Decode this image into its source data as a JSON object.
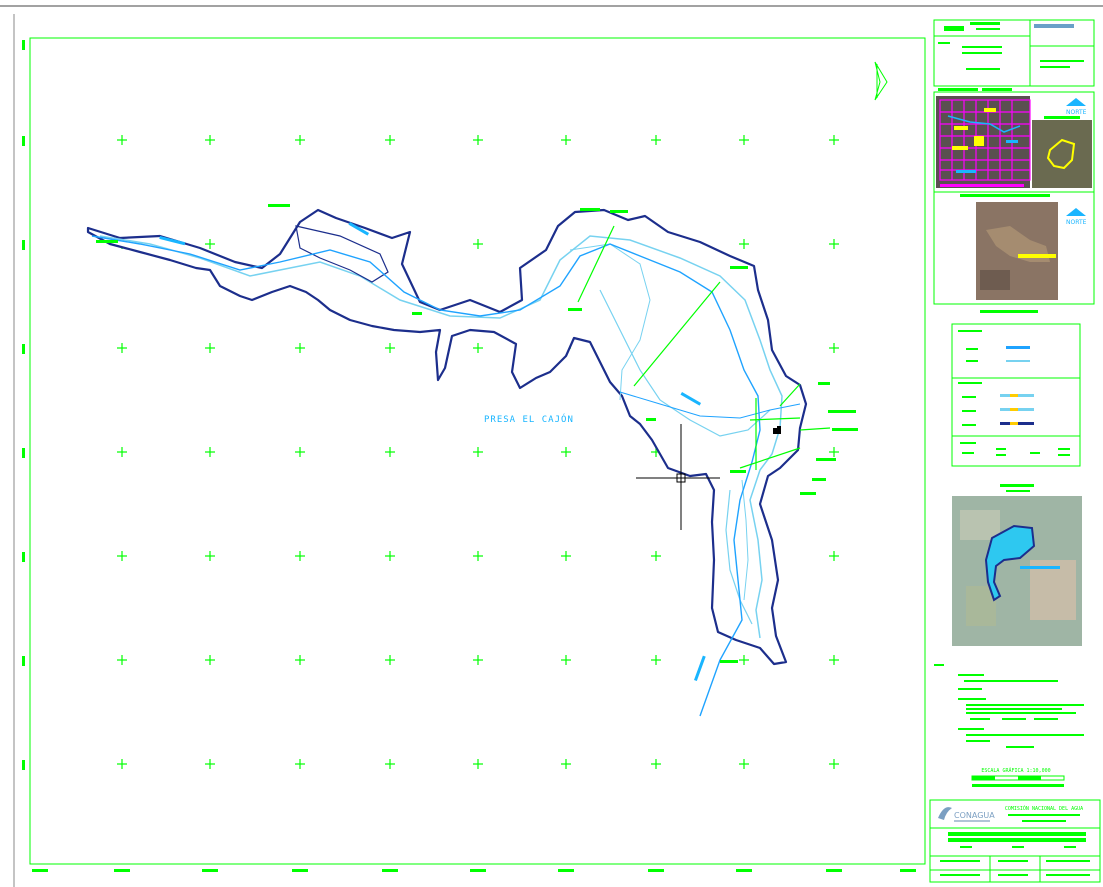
{
  "drawing": {
    "reservoir_label": "PRESA EL CAJÓN",
    "north_labels": [
      "NORTE",
      "NORTE"
    ],
    "scale_caption": "ESCALA GRÁFICA 1:10,000",
    "scale_right_label": "1:10,000",
    "logo_text": "CONAGUA",
    "org_title": "COMISIÓN NACIONAL DEL AGUA",
    "colors": {
      "frame": "#00ff00",
      "shore_dark": "#1c2e8c",
      "shore_light": "#77d2f0",
      "channel": "#1fa3ff",
      "label_green": "#00ff00",
      "label_cyan": "#19b5ff",
      "yellow": "#ffff00",
      "magenta": "#ff00ff"
    }
  }
}
